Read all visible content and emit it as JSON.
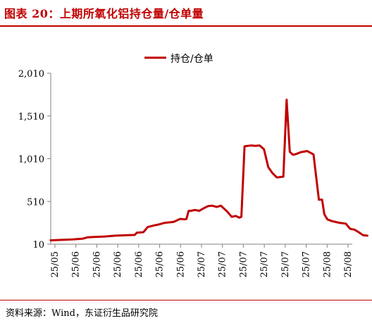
{
  "header": {
    "title": "图表 20：上期所氧化铝持仓量/仓单量"
  },
  "footer": {
    "source": "资料来源：Wind，东证衍生品研究院"
  },
  "colors": {
    "accent": "#c00000",
    "series": "#c00000"
  },
  "chart_data": {
    "type": "line",
    "title": "",
    "xlabel": "",
    "ylabel": "",
    "legend_position": "top-center",
    "grid": false,
    "ylim": [
      10,
      2010
    ],
    "yticks": [
      10,
      510,
      1010,
      1510,
      2010
    ],
    "yticks_labels": [
      "10",
      "510",
      "1,010",
      "1,510",
      "2,010"
    ],
    "xticks_labels": [
      "25/05",
      "25/06",
      "25/06",
      "25/06",
      "25/06",
      "25/06",
      "25/06",
      "25/07",
      "25/07",
      "25/07",
      "25/07",
      "25/07",
      "25/07",
      "25/08",
      "25/08"
    ],
    "x_range": [
      0,
      14
    ],
    "series": [
      {
        "name": "持仓/仓单",
        "x": [
          0,
          0.5,
          1,
          1.5,
          1.7,
          2,
          2.5,
          3,
          3.5,
          3.9,
          4,
          4.3,
          4.5,
          4.8,
          5,
          5.3,
          5.5,
          5.7,
          6,
          6.1,
          6.2,
          6.3,
          6.4,
          6.5,
          6.7,
          6.9,
          7.1,
          7.3,
          7.5,
          7.7,
          7.9,
          8.2,
          8.4,
          8.6,
          8.75,
          8.85,
          9,
          9.3,
          9.5,
          9.7,
          9.9,
          10.1,
          10.3,
          10.5,
          10.8,
          10.95,
          11.1,
          11.25,
          11.4,
          11.6,
          11.9,
          12.2,
          12.45,
          12.6,
          12.7,
          12.85,
          13.05,
          13.4,
          13.7,
          13.9,
          14.1,
          14.3,
          14.5,
          14.7
        ],
        "values": [
          55,
          60,
          65,
          75,
          90,
          95,
          100,
          110,
          115,
          118,
          145,
          150,
          210,
          230,
          240,
          260,
          265,
          270,
          305,
          305,
          300,
          305,
          400,
          400,
          410,
          400,
          430,
          455,
          460,
          445,
          460,
          390,
          330,
          340,
          320,
          330,
          1155,
          1165,
          1160,
          1165,
          1120,
          910,
          840,
          790,
          800,
          1700,
          1090,
          1055,
          1065,
          1085,
          1100,
          1060,
          530,
          530,
          360,
          300,
          280,
          260,
          250,
          190,
          180,
          150,
          115,
          110
        ]
      }
    ]
  }
}
